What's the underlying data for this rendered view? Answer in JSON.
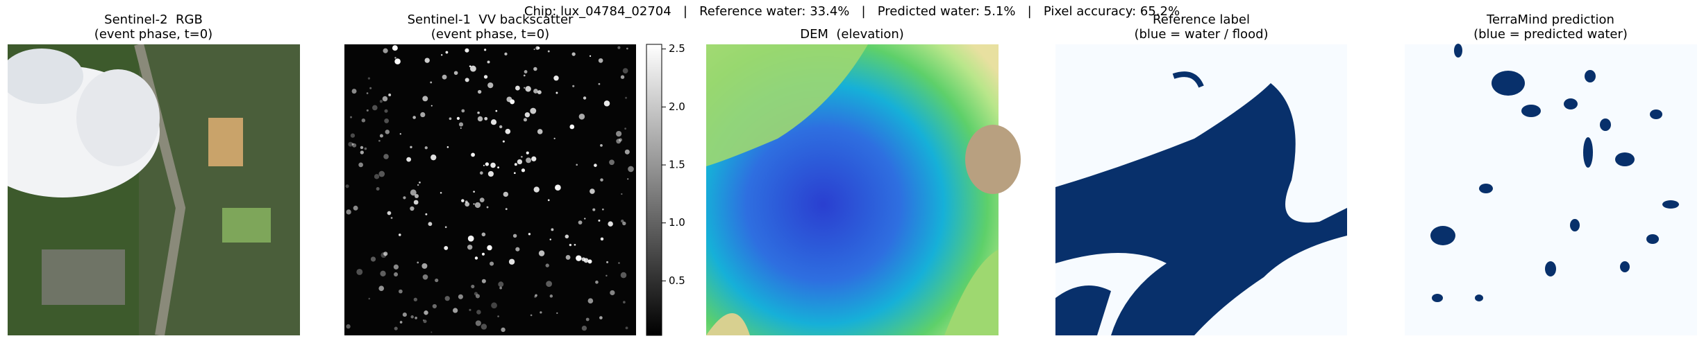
{
  "suptitle": "Chip: lux_04784_02704   |   Reference water: 33.4%   |   Predicted water: 5.1%   |   Pixel accuracy: 65.2%",
  "panels": [
    {
      "title": "Sentinel-2  RGB",
      "subtitle": "(event phase, t=0)"
    },
    {
      "title": "Sentinel-1  VV backscatter",
      "subtitle": "(event phase, t=0)"
    },
    {
      "title": "DEM  (elevation)"
    },
    {
      "title": "Reference label",
      "subtitle": "(blue = water / flood)"
    },
    {
      "title": "TerraMind prediction",
      "subtitle": "(blue = predicted water)"
    }
  ],
  "colorbar": {
    "lim": [
      0.03,
      2.54
    ],
    "ticks": [
      0.5,
      {
        "value": 1.0,
        "label": "1.0"
      },
      1.5,
      {
        "value": 2.0,
        "label": "2.0"
      },
      2.5
    ]
  }
}
